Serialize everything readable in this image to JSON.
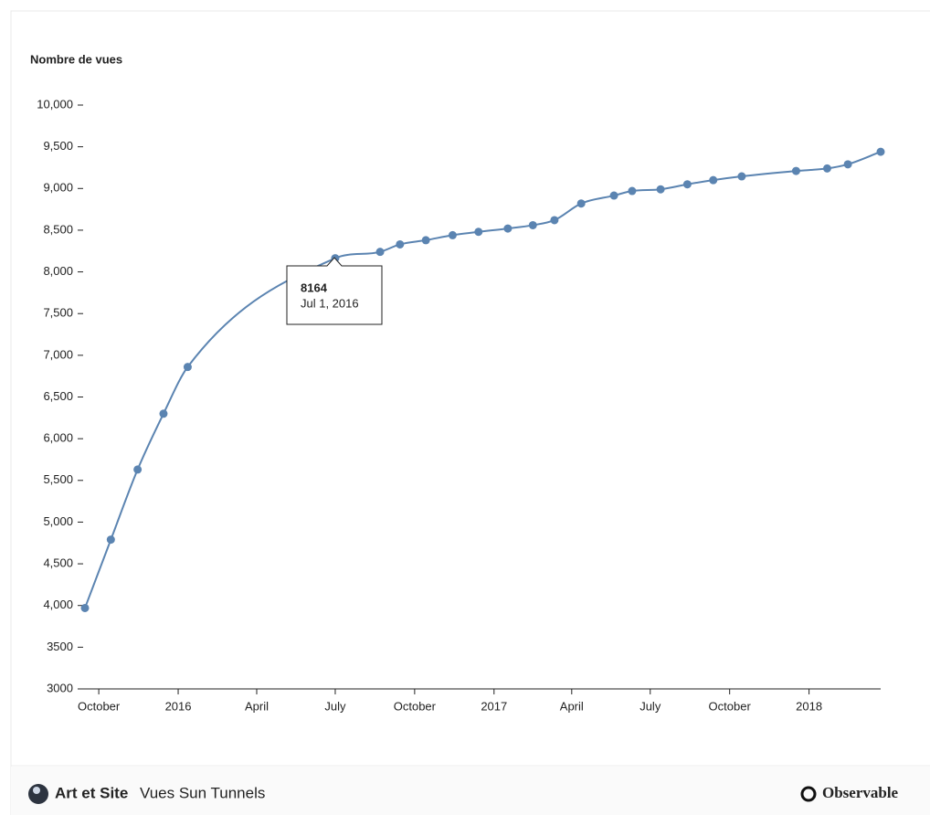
{
  "chart_data": {
    "type": "line",
    "y_label": "Nombre de vues",
    "x": [
      "2015-09-15",
      "2015-10-15",
      "2015-11-15",
      "2015-12-15",
      "2016-01-12",
      "2016-07-01",
      "2016-08-22",
      "2016-09-14",
      "2016-10-14",
      "2016-11-14",
      "2016-12-14",
      "2017-01-17",
      "2017-02-15",
      "2017-03-12",
      "2017-04-12",
      "2017-05-20",
      "2017-06-10",
      "2017-07-13",
      "2017-08-13",
      "2017-09-12",
      "2017-10-15",
      "2017-12-17",
      "2018-01-22",
      "2018-02-15",
      "2018-03-25"
    ],
    "values": [
      3970,
      4790,
      5630,
      6300,
      6860,
      8164,
      8240,
      8330,
      8380,
      8440,
      8480,
      8520,
      8560,
      8620,
      8820,
      8915,
      8970,
      8990,
      9050,
      9100,
      9145,
      9210,
      9240,
      9290,
      9440
    ],
    "color": "#5b84b1",
    "xlim": [
      "2015-09-15",
      "2018-03-25"
    ],
    "xticks": [
      {
        "value": "2015-10-01",
        "label": "October"
      },
      {
        "value": "2016-01-01",
        "label": "2016"
      },
      {
        "value": "2016-04-01",
        "label": "April"
      },
      {
        "value": "2016-07-01",
        "label": "July"
      },
      {
        "value": "2016-10-01",
        "label": "October"
      },
      {
        "value": "2017-01-01",
        "label": "2017"
      },
      {
        "value": "2017-04-01",
        "label": "April"
      },
      {
        "value": "2017-07-01",
        "label": "July"
      },
      {
        "value": "2017-10-01",
        "label": "October"
      },
      {
        "value": "2018-01-01",
        "label": "2018"
      }
    ],
    "ylim": [
      3000,
      10000
    ],
    "yticks": [
      3000,
      3500,
      {
        "value": 4000,
        "label": "4,000"
      },
      {
        "value": 4500,
        "label": "4,500"
      },
      {
        "value": 5000,
        "label": "5,000"
      },
      {
        "value": 5500,
        "label": "5,500"
      },
      {
        "value": 6000,
        "label": "6,000"
      },
      {
        "value": 6500,
        "label": "6,500"
      },
      {
        "value": 7000,
        "label": "7,000"
      },
      {
        "value": 7500,
        "label": "7,500"
      },
      {
        "value": 8000,
        "label": "8,000"
      },
      {
        "value": 8500,
        "label": "8,500"
      },
      {
        "value": 9000,
        "label": "9,000"
      },
      {
        "value": 9500,
        "label": "9,500"
      },
      {
        "value": 10000,
        "label": "10,000"
      }
    ],
    "tooltip": {
      "value": 8164,
      "date": "Jul 1, 2016"
    }
  },
  "footer": {
    "author": "Art et Site",
    "title": "Vues Sun Tunnels",
    "brand": "Observable"
  }
}
